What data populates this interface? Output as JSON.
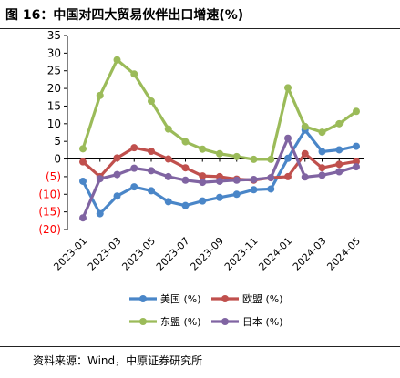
{
  "title": "图 16：中国对四大贸易伙伴出口增速(%)",
  "source": "资料来源：Wind，中原证券研究所",
  "chart_data": {
    "type": "line",
    "x": [
      "2023-01",
      "2023-02",
      "2023-03",
      "2023-04",
      "2023-05",
      "2023-06",
      "2023-07",
      "2023-08",
      "2023-09",
      "2023-10",
      "2023-11",
      "2023-12",
      "2024-01",
      "2024-02",
      "2024-03",
      "2024-04",
      "2024-05"
    ],
    "x_tick_labels": [
      "2023-01",
      "2023-03",
      "2023-05",
      "2023-07",
      "2023-09",
      "2023-11",
      "2024-01",
      "2024-03",
      "2024-05"
    ],
    "ylim": [
      -20,
      35
    ],
    "y_ticks": [
      35,
      30,
      25,
      20,
      15,
      10,
      5,
      0,
      -5,
      -10,
      -15,
      -20
    ],
    "y_tick_labels": [
      "35",
      "30",
      "25",
      "20",
      "15",
      "10",
      "5",
      "0",
      "(5)",
      "(10)",
      "(15)",
      "(20)"
    ],
    "negative_label_color": "#ff0000",
    "grid": false,
    "legend_position": "bottom",
    "series": [
      {
        "name": "美国 (%)",
        "color": "#4a86c8",
        "values": [
          -6.3,
          -15.5,
          -10.5,
          -7.9,
          -9.0,
          -12.1,
          -13.2,
          -11.9,
          -10.9,
          -10.0,
          -8.7,
          -8.5,
          0.2,
          8.2,
          2.1,
          2.6,
          3.6
        ]
      },
      {
        "name": "欧盟 (%)",
        "color": "#c0504d",
        "values": [
          -0.8,
          -5.0,
          0.3,
          3.2,
          2.2,
          0.0,
          -2.5,
          -4.8,
          -5.0,
          -5.7,
          -6.0,
          -5.3,
          -5.0,
          1.5,
          -2.5,
          -1.5,
          -0.7
        ]
      },
      {
        "name": "东盟 (%)",
        "color": "#9bbb59",
        "values": [
          2.9,
          18.0,
          28.1,
          24.1,
          16.4,
          8.5,
          4.9,
          2.8,
          1.5,
          0.7,
          -0.1,
          -0.1,
          20.2,
          9.2,
          7.6,
          10.0,
          13.5
        ]
      },
      {
        "name": "日本 (%)",
        "color": "#8064a2",
        "values": [
          -16.7,
          -5.6,
          -4.4,
          -2.6,
          -3.3,
          -5.0,
          -6.0,
          -6.6,
          -6.3,
          -6.0,
          -5.8,
          -5.3,
          5.9,
          -5.1,
          -4.6,
          -3.6,
          -2.2
        ]
      }
    ]
  }
}
